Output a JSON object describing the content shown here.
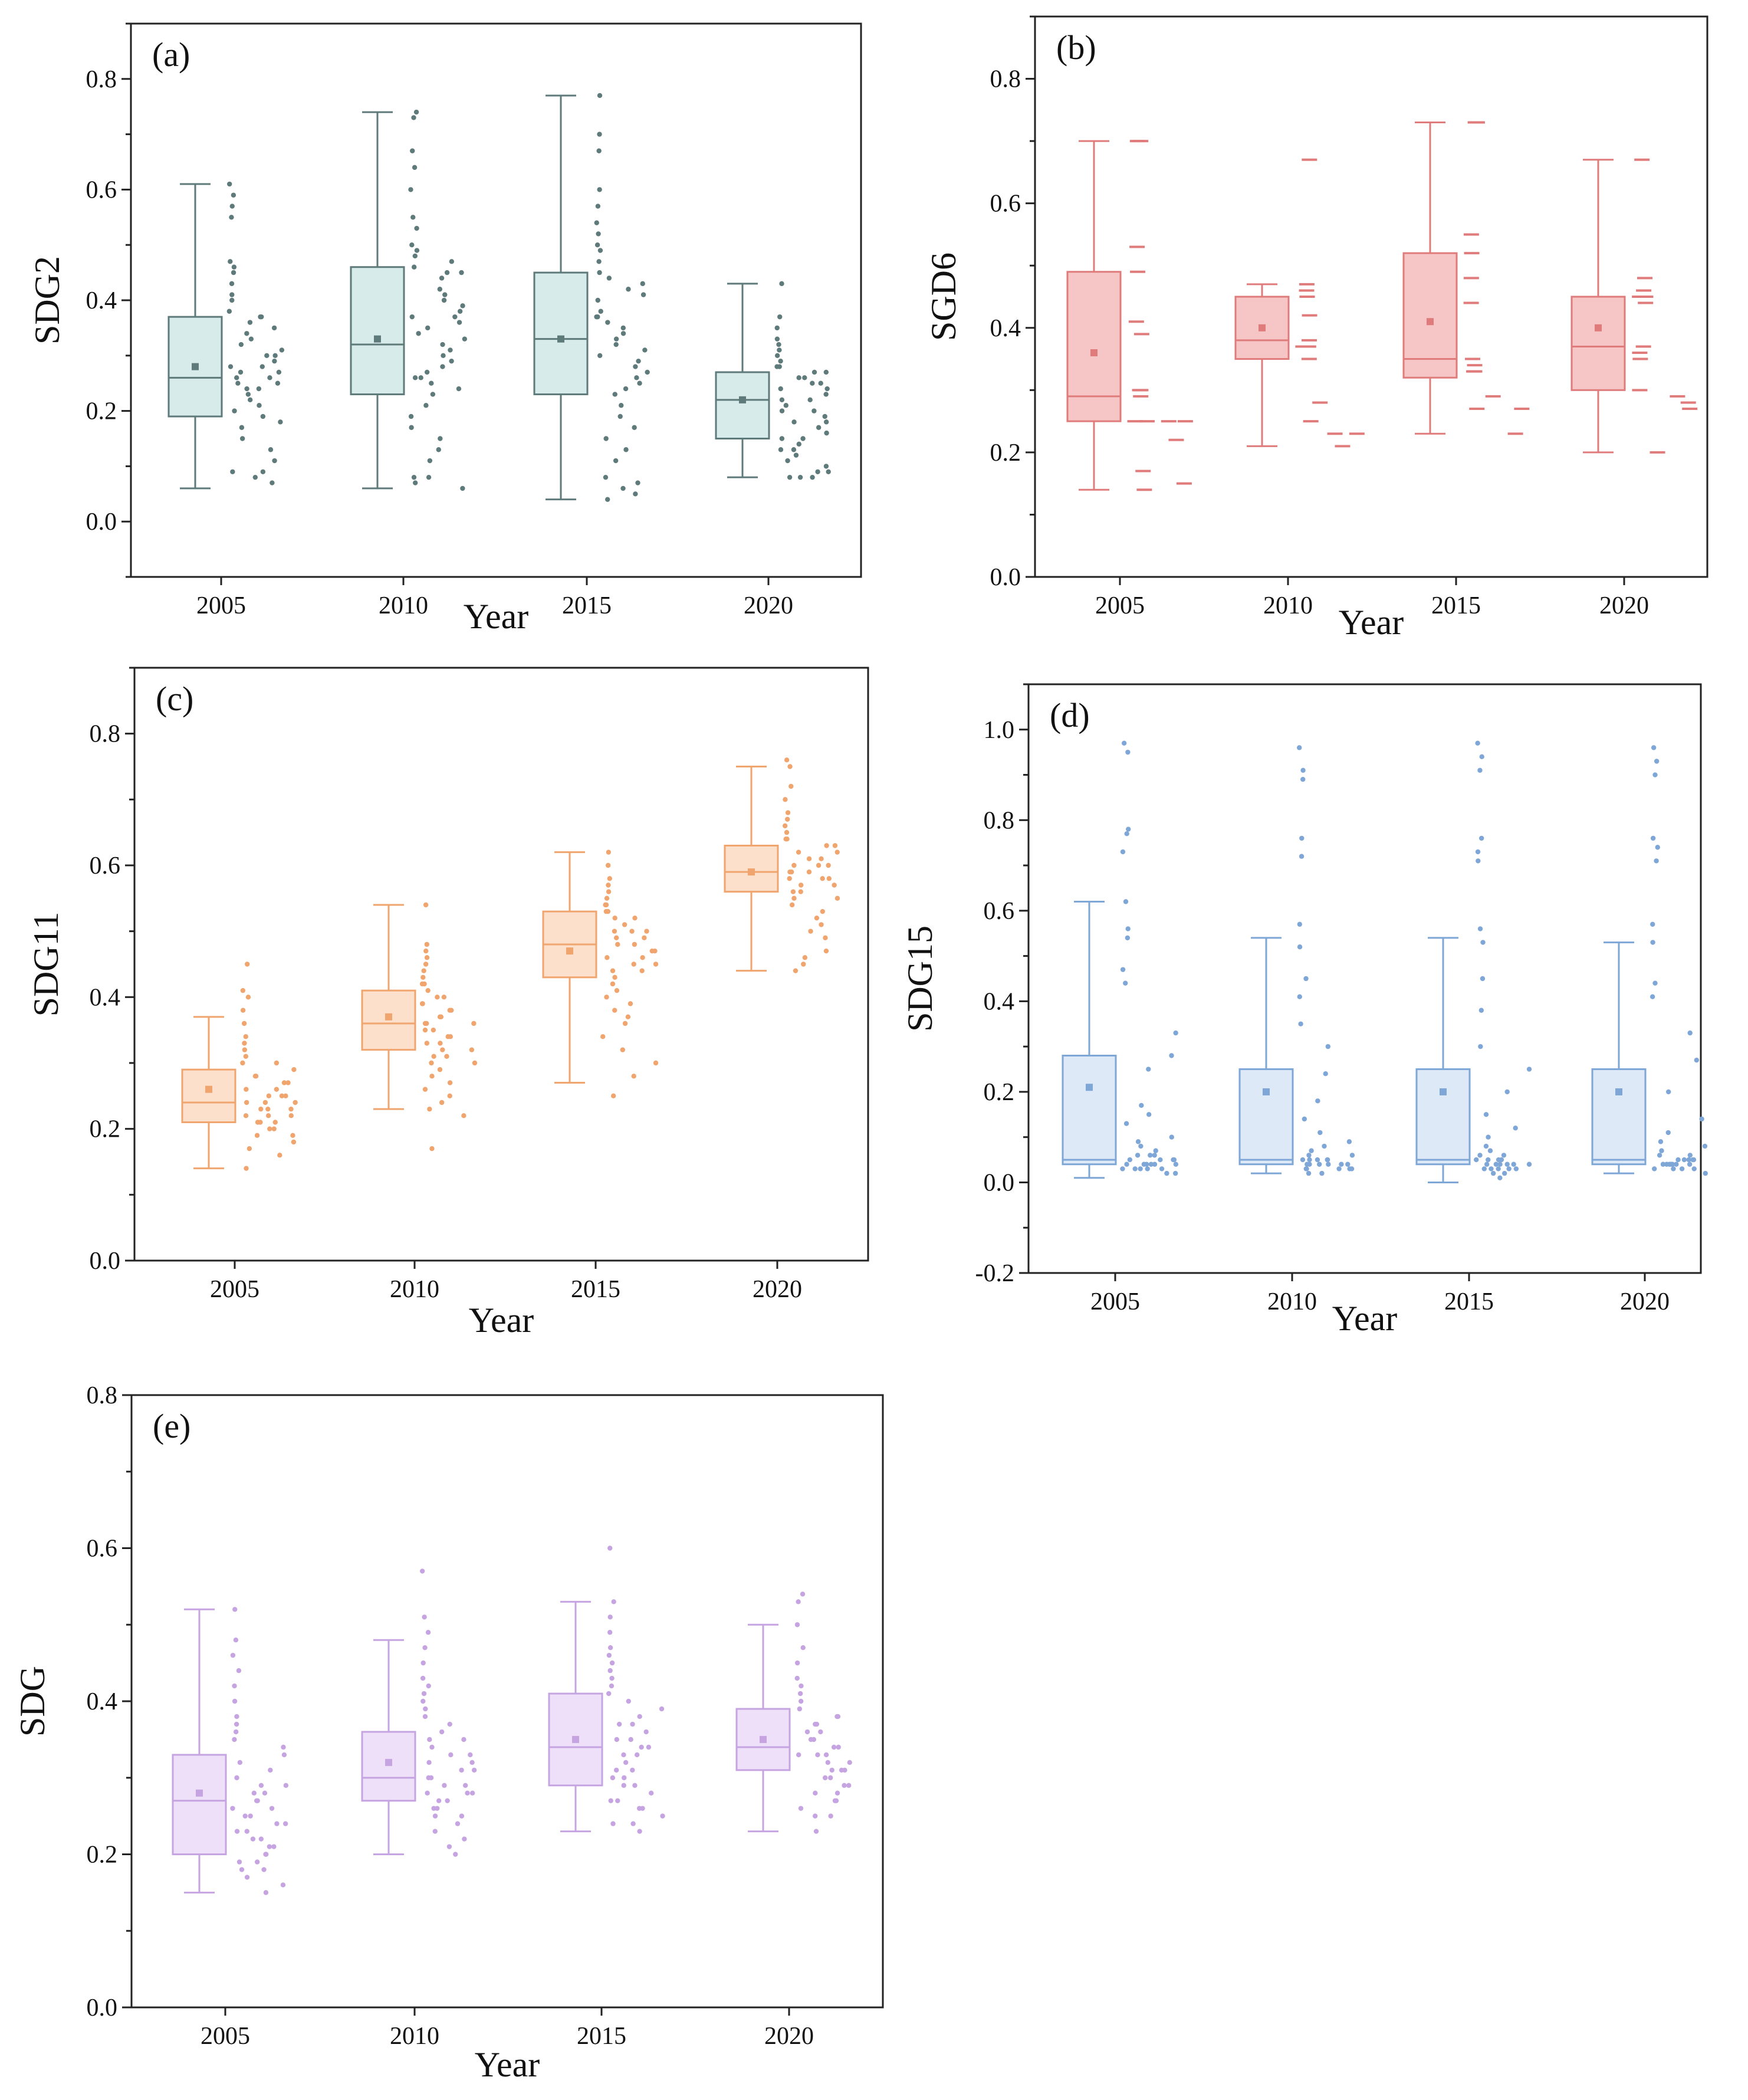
{
  "figure": {
    "x_axis_title": "Year"
  },
  "panels": [
    {
      "id": "a",
      "label": "(a)",
      "ylabel": "SDG2",
      "ylim": [
        -0.1,
        0.9
      ],
      "yticks": [
        0.0,
        0.2,
        0.4,
        0.6,
        0.8
      ],
      "color": "#5f7a7a",
      "fill": "#d6ebea",
      "point_style": "dot",
      "categories": [
        "2005",
        "2010",
        "2015",
        "2020"
      ],
      "boxes": [
        {
          "year": "2005",
          "whisker_low": 0.06,
          "q1": 0.19,
          "median": 0.26,
          "q3": 0.37,
          "whisker_high": 0.61,
          "mean": 0.28
        },
        {
          "year": "2010",
          "whisker_low": 0.06,
          "q1": 0.23,
          "median": 0.32,
          "q3": 0.46,
          "whisker_high": 0.74,
          "mean": 0.33
        },
        {
          "year": "2015",
          "whisker_low": 0.04,
          "q1": 0.23,
          "median": 0.33,
          "q3": 0.45,
          "whisker_high": 0.77,
          "mean": 0.33
        },
        {
          "year": "2020",
          "whisker_low": 0.08,
          "q1": 0.15,
          "median": 0.22,
          "q3": 0.27,
          "whisker_high": 0.43,
          "mean": 0.22
        }
      ],
      "points": [
        [
          0.61,
          0.59,
          0.57,
          0.55,
          0.47,
          0.46,
          0.45,
          0.43,
          0.41,
          0.4,
          0.38,
          0.37,
          0.37,
          0.36,
          0.35,
          0.34,
          0.33,
          0.32,
          0.31,
          0.3,
          0.3,
          0.29,
          0.28,
          0.28,
          0.27,
          0.27,
          0.26,
          0.26,
          0.25,
          0.25,
          0.24,
          0.24,
          0.23,
          0.22,
          0.21,
          0.2,
          0.19,
          0.18,
          0.17,
          0.15,
          0.13,
          0.11,
          0.09,
          0.09,
          0.08,
          0.07
        ],
        [
          0.74,
          0.73,
          0.67,
          0.64,
          0.6,
          0.55,
          0.53,
          0.5,
          0.49,
          0.48,
          0.47,
          0.46,
          0.45,
          0.45,
          0.44,
          0.42,
          0.41,
          0.4,
          0.39,
          0.38,
          0.37,
          0.37,
          0.36,
          0.35,
          0.34,
          0.33,
          0.32,
          0.31,
          0.3,
          0.29,
          0.28,
          0.27,
          0.26,
          0.26,
          0.25,
          0.24,
          0.23,
          0.21,
          0.19,
          0.17,
          0.15,
          0.13,
          0.11,
          0.08,
          0.08,
          0.07,
          0.06
        ],
        [
          0.77,
          0.7,
          0.67,
          0.6,
          0.57,
          0.54,
          0.52,
          0.5,
          0.49,
          0.47,
          0.45,
          0.44,
          0.43,
          0.42,
          0.41,
          0.4,
          0.38,
          0.37,
          0.37,
          0.36,
          0.35,
          0.34,
          0.33,
          0.32,
          0.31,
          0.3,
          0.29,
          0.28,
          0.27,
          0.26,
          0.25,
          0.24,
          0.23,
          0.21,
          0.19,
          0.17,
          0.15,
          0.13,
          0.11,
          0.08,
          0.07,
          0.06,
          0.05,
          0.04
        ],
        [
          0.43,
          0.37,
          0.35,
          0.33,
          0.32,
          0.31,
          0.3,
          0.29,
          0.28,
          0.28,
          0.27,
          0.27,
          0.26,
          0.26,
          0.25,
          0.25,
          0.24,
          0.24,
          0.23,
          0.22,
          0.22,
          0.21,
          0.2,
          0.2,
          0.19,
          0.18,
          0.18,
          0.17,
          0.16,
          0.15,
          0.15,
          0.14,
          0.13,
          0.13,
          0.12,
          0.11,
          0.1,
          0.09,
          0.09,
          0.08,
          0.08,
          0.08
        ]
      ]
    },
    {
      "id": "b",
      "label": "(b)",
      "ylabel": "SGD6",
      "ylim": [
        0.0,
        0.9
      ],
      "yticks": [
        0.0,
        0.2,
        0.4,
        0.6,
        0.8
      ],
      "color": "#e07b7b",
      "fill": "#f6c6c6",
      "point_style": "dash",
      "categories": [
        "2005",
        "2010",
        "2015",
        "2020"
      ],
      "boxes": [
        {
          "year": "2005",
          "whisker_low": 0.14,
          "q1": 0.25,
          "median": 0.29,
          "q3": 0.49,
          "whisker_high": 0.7,
          "mean": 0.36
        },
        {
          "year": "2010",
          "whisker_low": 0.21,
          "q1": 0.35,
          "median": 0.38,
          "q3": 0.45,
          "whisker_high": 0.47,
          "mean": 0.4
        },
        {
          "year": "2015",
          "whisker_low": 0.23,
          "q1": 0.32,
          "median": 0.35,
          "q3": 0.52,
          "whisker_high": 0.73,
          "mean": 0.41
        },
        {
          "year": "2020",
          "whisker_low": 0.2,
          "q1": 0.3,
          "median": 0.37,
          "q3": 0.45,
          "whisker_high": 0.67,
          "mean": 0.4
        }
      ],
      "points": [
        [
          0.7,
          0.7,
          0.53,
          0.49,
          0.41,
          0.39,
          0.3,
          0.3,
          0.29,
          0.25,
          0.25,
          0.25,
          0.25,
          0.22,
          0.17,
          0.15,
          0.14
        ],
        [
          0.67,
          0.47,
          0.46,
          0.45,
          0.45,
          0.42,
          0.38,
          0.37,
          0.37,
          0.35,
          0.28,
          0.25,
          0.23,
          0.23,
          0.21
        ],
        [
          0.73,
          0.73,
          0.55,
          0.52,
          0.48,
          0.44,
          0.35,
          0.34,
          0.33,
          0.33,
          0.29,
          0.27,
          0.27,
          0.23
        ],
        [
          0.67,
          0.48,
          0.46,
          0.45,
          0.45,
          0.44,
          0.37,
          0.36,
          0.35,
          0.3,
          0.29,
          0.28,
          0.27,
          0.2
        ]
      ]
    },
    {
      "id": "c",
      "label": "(c)",
      "ylabel": "SDG11",
      "ylim": [
        0.0,
        0.9
      ],
      "yticks": [
        0.0,
        0.2,
        0.4,
        0.6,
        0.8
      ],
      "color": "#f0a46e",
      "fill": "#fde0cb",
      "point_style": "dot",
      "categories": [
        "2005",
        "2010",
        "2015",
        "2020"
      ],
      "boxes": [
        {
          "year": "2005",
          "whisker_low": 0.14,
          "q1": 0.21,
          "median": 0.24,
          "q3": 0.29,
          "whisker_high": 0.37,
          "mean": 0.26
        },
        {
          "year": "2010",
          "whisker_low": 0.23,
          "q1": 0.32,
          "median": 0.36,
          "q3": 0.41,
          "whisker_high": 0.54,
          "mean": 0.37
        },
        {
          "year": "2015",
          "whisker_low": 0.27,
          "q1": 0.43,
          "median": 0.48,
          "q3": 0.53,
          "whisker_high": 0.62,
          "mean": 0.47
        },
        {
          "year": "2020",
          "whisker_low": 0.44,
          "q1": 0.56,
          "median": 0.59,
          "q3": 0.63,
          "whisker_high": 0.75,
          "mean": 0.59
        }
      ],
      "points": [
        [
          0.45,
          0.41,
          0.4,
          0.38,
          0.36,
          0.34,
          0.33,
          0.32,
          0.31,
          0.3,
          0.3,
          0.29,
          0.28,
          0.28,
          0.27,
          0.27,
          0.26,
          0.26,
          0.25,
          0.25,
          0.25,
          0.24,
          0.24,
          0.24,
          0.23,
          0.23,
          0.23,
          0.22,
          0.22,
          0.22,
          0.21,
          0.21,
          0.21,
          0.2,
          0.2,
          0.19,
          0.19,
          0.18,
          0.17,
          0.16,
          0.14
        ],
        [
          0.54,
          0.48,
          0.47,
          0.46,
          0.45,
          0.44,
          0.43,
          0.42,
          0.42,
          0.41,
          0.4,
          0.4,
          0.39,
          0.39,
          0.38,
          0.38,
          0.37,
          0.37,
          0.36,
          0.36,
          0.36,
          0.35,
          0.35,
          0.34,
          0.34,
          0.33,
          0.33,
          0.32,
          0.32,
          0.31,
          0.31,
          0.3,
          0.3,
          0.29,
          0.28,
          0.27,
          0.26,
          0.25,
          0.24,
          0.23,
          0.22,
          0.17
        ],
        [
          0.62,
          0.6,
          0.58,
          0.57,
          0.56,
          0.55,
          0.54,
          0.54,
          0.53,
          0.53,
          0.52,
          0.52,
          0.51,
          0.5,
          0.5,
          0.5,
          0.49,
          0.49,
          0.48,
          0.48,
          0.47,
          0.47,
          0.46,
          0.46,
          0.45,
          0.45,
          0.44,
          0.44,
          0.43,
          0.42,
          0.41,
          0.4,
          0.39,
          0.38,
          0.37,
          0.36,
          0.34,
          0.32,
          0.3,
          0.28,
          0.25
        ],
        [
          0.76,
          0.75,
          0.72,
          0.7,
          0.68,
          0.67,
          0.66,
          0.65,
          0.64,
          0.64,
          0.63,
          0.63,
          0.62,
          0.62,
          0.61,
          0.61,
          0.6,
          0.6,
          0.6,
          0.59,
          0.59,
          0.59,
          0.58,
          0.58,
          0.58,
          0.57,
          0.57,
          0.56,
          0.56,
          0.55,
          0.55,
          0.54,
          0.53,
          0.52,
          0.51,
          0.5,
          0.49,
          0.47,
          0.46,
          0.45,
          0.44
        ]
      ]
    },
    {
      "id": "d",
      "label": "(d)",
      "ylabel": "SDG15",
      "ylim": [
        -0.2,
        1.1
      ],
      "yticks": [
        -0.2,
        0.0,
        0.2,
        0.4,
        0.6,
        0.8,
        1.0
      ],
      "color": "#7ea6d6",
      "fill": "#dde9f7",
      "point_style": "dot",
      "categories": [
        "2005",
        "2010",
        "2015",
        "2020"
      ],
      "boxes": [
        {
          "year": "2005",
          "whisker_low": 0.01,
          "q1": 0.04,
          "median": 0.05,
          "q3": 0.28,
          "whisker_high": 0.62,
          "mean": 0.21
        },
        {
          "year": "2010",
          "whisker_low": 0.02,
          "q1": 0.04,
          "median": 0.05,
          "q3": 0.25,
          "whisker_high": 0.54,
          "mean": 0.2
        },
        {
          "year": "2015",
          "whisker_low": 0.0,
          "q1": 0.04,
          "median": 0.05,
          "q3": 0.25,
          "whisker_high": 0.54,
          "mean": 0.2
        },
        {
          "year": "2020",
          "whisker_low": 0.02,
          "q1": 0.04,
          "median": 0.05,
          "q3": 0.25,
          "whisker_high": 0.53,
          "mean": 0.2
        }
      ],
      "points": [
        [
          0.97,
          0.95,
          0.78,
          0.77,
          0.73,
          0.62,
          0.56,
          0.54,
          0.47,
          0.44,
          0.33,
          0.28,
          0.25,
          0.17,
          0.15,
          0.13,
          0.1,
          0.09,
          0.08,
          0.07,
          0.06,
          0.06,
          0.06,
          0.05,
          0.05,
          0.05,
          0.05,
          0.04,
          0.04,
          0.04,
          0.04,
          0.04,
          0.04,
          0.03,
          0.03,
          0.03,
          0.03,
          0.03,
          0.02,
          0.02
        ],
        [
          0.96,
          0.91,
          0.89,
          0.76,
          0.72,
          0.57,
          0.52,
          0.45,
          0.41,
          0.35,
          0.3,
          0.24,
          0.18,
          0.14,
          0.11,
          0.09,
          0.08,
          0.07,
          0.06,
          0.06,
          0.05,
          0.05,
          0.05,
          0.05,
          0.05,
          0.04,
          0.04,
          0.04,
          0.04,
          0.04,
          0.04,
          0.03,
          0.03,
          0.03,
          0.03,
          0.03,
          0.02,
          0.02
        ],
        [
          0.97,
          0.94,
          0.91,
          0.76,
          0.73,
          0.71,
          0.56,
          0.53,
          0.45,
          0.38,
          0.3,
          0.25,
          0.2,
          0.15,
          0.12,
          0.1,
          0.08,
          0.07,
          0.06,
          0.06,
          0.05,
          0.05,
          0.05,
          0.05,
          0.04,
          0.04,
          0.04,
          0.04,
          0.04,
          0.04,
          0.03,
          0.03,
          0.03,
          0.03,
          0.03,
          0.02,
          0.02,
          0.01
        ],
        [
          0.96,
          0.93,
          0.9,
          0.76,
          0.74,
          0.71,
          0.57,
          0.53,
          0.44,
          0.41,
          0.33,
          0.27,
          0.2,
          0.14,
          0.11,
          0.09,
          0.08,
          0.07,
          0.06,
          0.06,
          0.05,
          0.05,
          0.05,
          0.05,
          0.05,
          0.04,
          0.04,
          0.04,
          0.04,
          0.04,
          0.04,
          0.04,
          0.03,
          0.03,
          0.03,
          0.03,
          0.02
        ]
      ]
    },
    {
      "id": "e",
      "label": "(e)",
      "ylabel": "SDG",
      "ylim": [
        0.0,
        0.8
      ],
      "yticks": [
        0.0,
        0.2,
        0.4,
        0.6,
        0.8
      ],
      "color": "#c6a4e2",
      "fill": "#ede0f8",
      "point_style": "dot",
      "categories": [
        "2005",
        "2010",
        "2015",
        "2020"
      ],
      "boxes": [
        {
          "year": "2005",
          "whisker_low": 0.15,
          "q1": 0.2,
          "median": 0.27,
          "q3": 0.33,
          "whisker_high": 0.52,
          "mean": 0.28
        },
        {
          "year": "2010",
          "whisker_low": 0.2,
          "q1": 0.27,
          "median": 0.3,
          "q3": 0.36,
          "whisker_high": 0.48,
          "mean": 0.32
        },
        {
          "year": "2015",
          "whisker_low": 0.23,
          "q1": 0.29,
          "median": 0.34,
          "q3": 0.41,
          "whisker_high": 0.53,
          "mean": 0.35
        },
        {
          "year": "2020",
          "whisker_low": 0.23,
          "q1": 0.31,
          "median": 0.34,
          "q3": 0.39,
          "whisker_high": 0.5,
          "mean": 0.35
        }
      ],
      "points": [
        [
          0.52,
          0.48,
          0.46,
          0.44,
          0.42,
          0.4,
          0.38,
          0.37,
          0.36,
          0.35,
          0.34,
          0.33,
          0.32,
          0.31,
          0.3,
          0.29,
          0.29,
          0.28,
          0.28,
          0.27,
          0.27,
          0.26,
          0.26,
          0.25,
          0.25,
          0.24,
          0.24,
          0.23,
          0.23,
          0.22,
          0.22,
          0.21,
          0.21,
          0.2,
          0.2,
          0.19,
          0.19,
          0.18,
          0.18,
          0.17,
          0.16,
          0.15
        ],
        [
          0.57,
          0.51,
          0.49,
          0.47,
          0.45,
          0.43,
          0.42,
          0.41,
          0.4,
          0.39,
          0.38,
          0.37,
          0.36,
          0.35,
          0.35,
          0.34,
          0.33,
          0.33,
          0.32,
          0.32,
          0.31,
          0.31,
          0.3,
          0.3,
          0.29,
          0.29,
          0.28,
          0.28,
          0.28,
          0.27,
          0.27,
          0.26,
          0.26,
          0.25,
          0.25,
          0.24,
          0.23,
          0.22,
          0.21,
          0.2
        ],
        [
          0.6,
          0.53,
          0.51,
          0.49,
          0.47,
          0.46,
          0.45,
          0.44,
          0.43,
          0.42,
          0.41,
          0.4,
          0.39,
          0.38,
          0.37,
          0.37,
          0.36,
          0.35,
          0.35,
          0.34,
          0.34,
          0.33,
          0.33,
          0.32,
          0.31,
          0.31,
          0.3,
          0.3,
          0.29,
          0.29,
          0.28,
          0.27,
          0.27,
          0.26,
          0.26,
          0.25,
          0.24,
          0.24,
          0.23
        ],
        [
          0.54,
          0.53,
          0.5,
          0.47,
          0.45,
          0.43,
          0.42,
          0.41,
          0.4,
          0.39,
          0.38,
          0.38,
          0.37,
          0.37,
          0.36,
          0.36,
          0.35,
          0.35,
          0.34,
          0.34,
          0.33,
          0.33,
          0.33,
          0.32,
          0.32,
          0.31,
          0.31,
          0.31,
          0.3,
          0.3,
          0.29,
          0.29,
          0.28,
          0.28,
          0.27,
          0.27,
          0.26,
          0.25,
          0.25,
          0.23
        ]
      ]
    }
  ]
}
